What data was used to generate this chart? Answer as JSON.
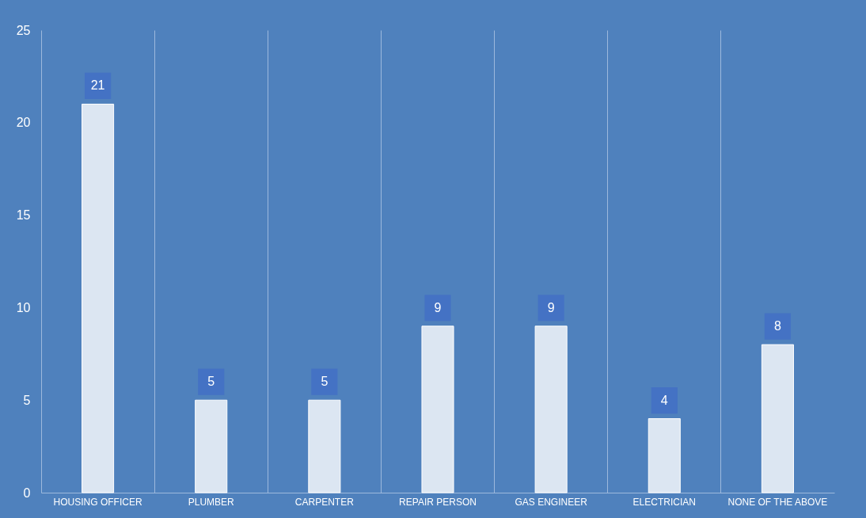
{
  "chart_data": {
    "type": "bar",
    "categories": [
      "HOUSING OFFICER",
      "PLUMBER",
      "CARPENTER",
      "REPAIR PERSON",
      "GAS ENGINEER",
      "ELECTRICIAN",
      "NONE OF THE ABOVE"
    ],
    "values": [
      21,
      5,
      5,
      9,
      9,
      4,
      8
    ],
    "color": "#dce6f2",
    "ylim": [
      0,
      25
    ],
    "yticks": [
      0,
      5,
      10,
      15,
      20,
      25
    ],
    "grid": "x",
    "data_labels": true
  }
}
